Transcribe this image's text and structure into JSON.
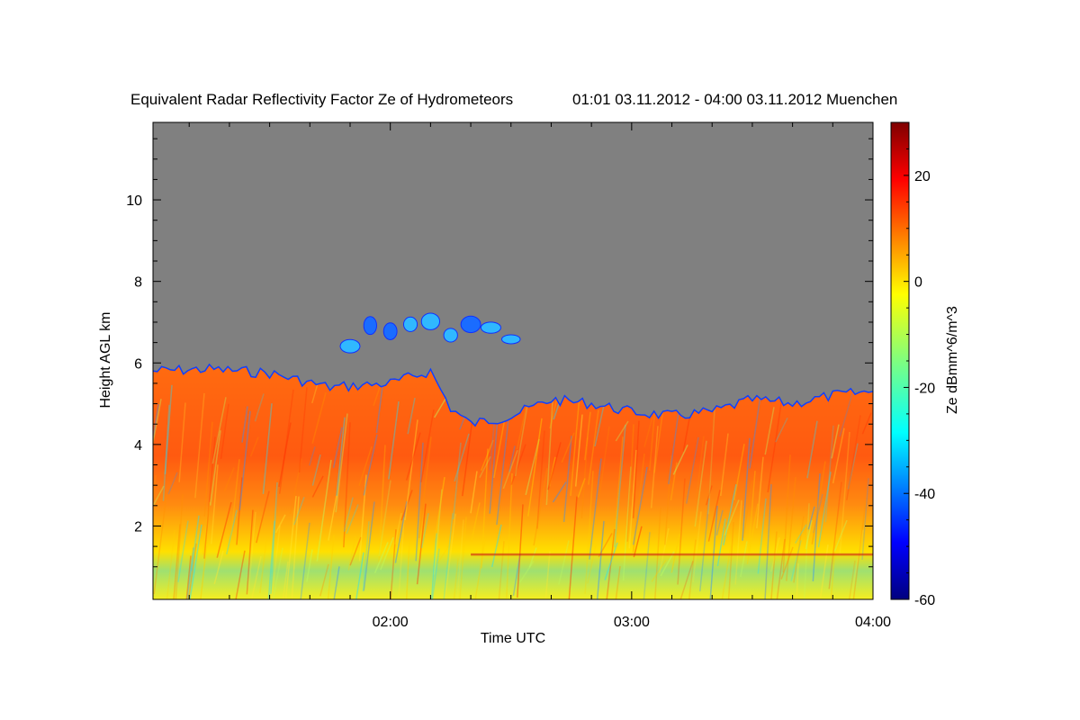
{
  "chart_data": {
    "type": "heatmap",
    "title": "Equivalent Radar Reflectivity Factor Ze of Hydrometeors",
    "subtitle": "01:01 03.11.2012 - 04:00 03.11.2012 Muenchen",
    "xlabel": "Time UTC",
    "ylabel": "Height AGL km",
    "colorbar_label": "Ze dBmm^6/m^3",
    "x_range": [
      "01:01",
      "04:00"
    ],
    "x_ticks": [
      "02:00",
      "03:00",
      "04:00"
    ],
    "y_range": [
      0.2,
      11.9
    ],
    "y_ticks": [
      2,
      4,
      6,
      8,
      10
    ],
    "colorbar_range": [
      -60,
      30
    ],
    "colorbar_ticks": [
      20,
      0,
      -20,
      -40,
      -60
    ],
    "colormap": "jet",
    "no_data_color": "#808080",
    "echo_top_km": [
      {
        "time": "01:01",
        "top": 5.8
      },
      {
        "time": "01:15",
        "top": 5.85
      },
      {
        "time": "01:30",
        "top": 5.75
      },
      {
        "time": "01:45",
        "top": 5.4
      },
      {
        "time": "02:00",
        "top": 5.5
      },
      {
        "time": "02:10",
        "top": 5.8
      },
      {
        "time": "02:15",
        "top": 4.9
      },
      {
        "time": "02:20",
        "top": 4.5
      },
      {
        "time": "02:30",
        "top": 4.7
      },
      {
        "time": "02:40",
        "top": 5.1
      },
      {
        "time": "02:50",
        "top": 5.0
      },
      {
        "time": "03:00",
        "top": 4.8
      },
      {
        "time": "03:10",
        "top": 4.7
      },
      {
        "time": "03:20",
        "top": 4.8
      },
      {
        "time": "03:30",
        "top": 5.1
      },
      {
        "time": "03:40",
        "top": 5.0
      },
      {
        "time": "03:50",
        "top": 5.2
      },
      {
        "time": "04:00",
        "top": 5.3
      }
    ],
    "elevated_layer_km": {
      "time_range": [
        "01:50",
        "02:30"
      ],
      "height_range": [
        6.0,
        7.2
      ]
    },
    "bright_band_km": 1.3,
    "max_reflectivity_layer_km": [
      1.8,
      4.0
    ]
  }
}
